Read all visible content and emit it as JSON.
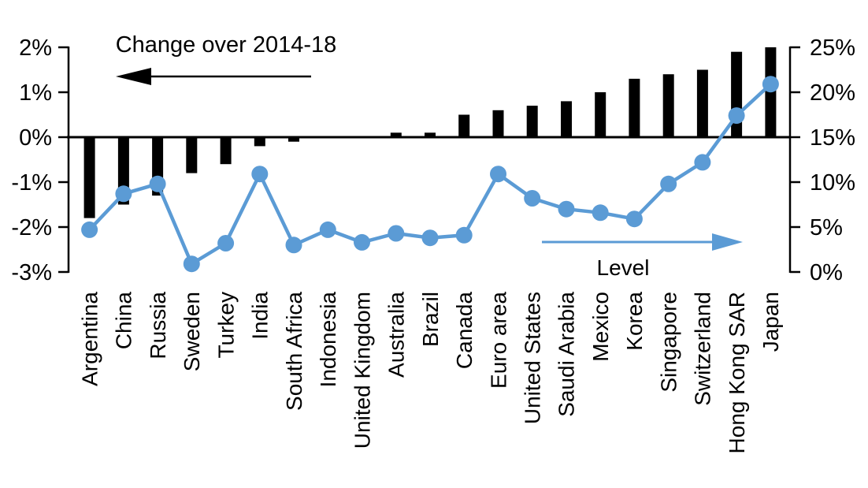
{
  "chart_data": {
    "type": "combo",
    "title": "",
    "grid": "off",
    "legend": "in-plot arrow annotations",
    "categories": [
      "Argentina",
      "China",
      "Russia",
      "Sweden",
      "Turkey",
      "India",
      "South Africa",
      "Indonesia",
      "United Kingdom",
      "Australia",
      "Brazil",
      "Canada",
      "Euro area",
      "United States",
      "Saudi Arabia",
      "Mexico",
      "Korea",
      "Singapore",
      "Switzerland",
      "Hong Kong SAR",
      "Japan"
    ],
    "series": [
      {
        "name": "Change over 2014-18",
        "type": "bar",
        "axis": "left",
        "color": "#000000",
        "values": [
          -1.8,
          -1.5,
          -1.3,
          -0.8,
          -0.6,
          -0.2,
          -0.1,
          0,
          0,
          0.1,
          0.1,
          0.5,
          0.6,
          0.7,
          0.8,
          1.0,
          1.3,
          1.4,
          1.5,
          1.9,
          2.0
        ]
      },
      {
        "name": "Level",
        "type": "line",
        "axis": "right",
        "color": "#5B9BD5",
        "values": [
          4.7,
          8.7,
          9.8,
          0.9,
          3.2,
          10.9,
          3.0,
          4.7,
          3.3,
          4.3,
          3.8,
          4.1,
          10.9,
          8.2,
          7.0,
          6.6,
          5.9,
          9.8,
          12.2,
          17.4,
          20.9
        ]
      }
    ],
    "left_axis": {
      "min": -3,
      "max": 2,
      "unit": "%",
      "tick_labels": [
        "2%",
        "1%",
        "0%",
        "-1%",
        "-2%",
        "-3%"
      ],
      "tick_values": [
        2,
        1,
        0,
        -1,
        -2,
        -3
      ]
    },
    "right_axis": {
      "min": 0,
      "max": 25,
      "unit": "%",
      "tick_labels": [
        "25%",
        "20%",
        "15%",
        "10%",
        "5%",
        "0%"
      ],
      "tick_values": [
        25,
        20,
        15,
        10,
        5,
        0
      ]
    },
    "annotations": [
      {
        "text": "Change over 2014-18",
        "arrow_direction": "left",
        "color": "#000000"
      },
      {
        "text": "Level",
        "arrow_direction": "right",
        "color": "#5B9BD5"
      }
    ]
  }
}
